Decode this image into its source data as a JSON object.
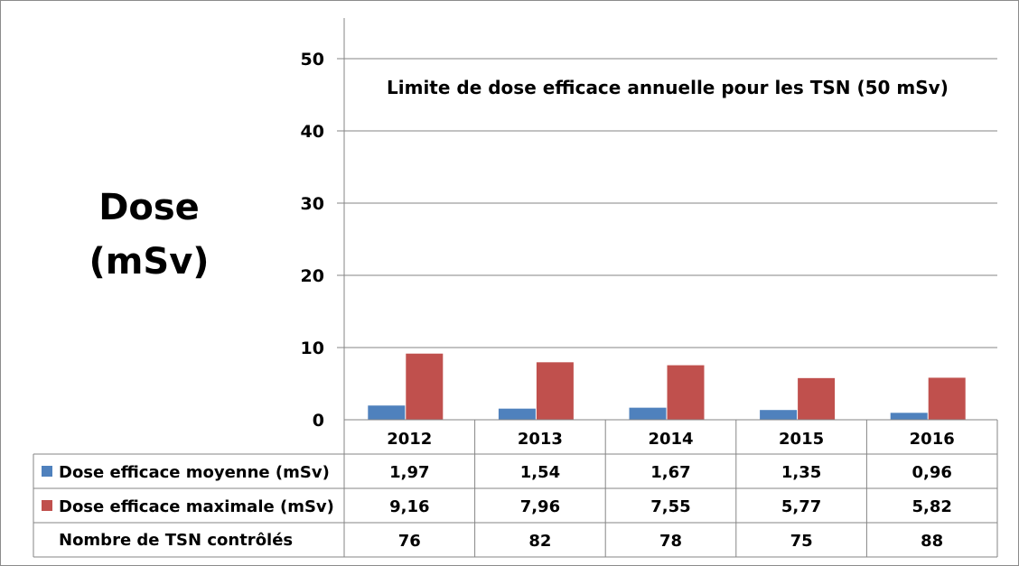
{
  "chart_data": {
    "type": "bar",
    "ylabel_line1": "Dose",
    "ylabel_line2": "(mSv)",
    "annotation": "Limite de dose efficace annuelle pour les TSN (50 mSv)",
    "ylim": [
      0,
      55
    ],
    "yticks": [
      0,
      10,
      20,
      30,
      40,
      50
    ],
    "grid": true,
    "categories": [
      "2012",
      "2013",
      "2014",
      "2015",
      "2016"
    ],
    "series": [
      {
        "name": "Dose efficace moyenne (mSv)",
        "color": "#4f81bd",
        "values": [
          1.97,
          1.54,
          1.67,
          1.35,
          0.96
        ],
        "labels": [
          "1,97",
          "1,54",
          "1,67",
          "1,35",
          "0,96"
        ]
      },
      {
        "name": "Dose efficace maximale (mSv)",
        "color": "#c0504d",
        "values": [
          9.16,
          7.96,
          7.55,
          5.77,
          5.82
        ],
        "labels": [
          "9,16",
          "7,96",
          "7,55",
          "5,77",
          "5,82"
        ]
      }
    ],
    "extra_row": {
      "name": "Nombre de TSN contrôlés",
      "values": [
        "76",
        "82",
        "78",
        "75",
        "88"
      ]
    }
  }
}
